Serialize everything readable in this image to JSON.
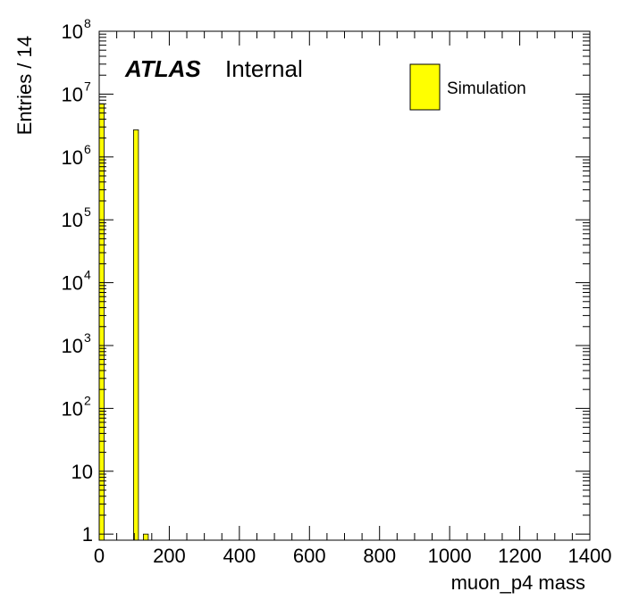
{
  "chart_data": {
    "type": "bar",
    "xlabel": "muon_p4 mass",
    "ylabel": "Entries / 14",
    "xlim": [
      0,
      1400
    ],
    "ylim": [
      0.8,
      100000000
    ],
    "yscale": "log",
    "bin_width": 14,
    "x_ticks": [
      "0",
      "200",
      "400",
      "600",
      "800",
      "1000",
      "1200",
      "1400"
    ],
    "x_tick_values": [
      0,
      200,
      400,
      600,
      800,
      1000,
      1200,
      1400
    ],
    "y_ticks": [
      {
        "value": 1,
        "base": "1",
        "exp": ""
      },
      {
        "value": 10,
        "base": "10",
        "exp": ""
      },
      {
        "value": 100,
        "base": "10",
        "exp": "2"
      },
      {
        "value": 1000,
        "base": "10",
        "exp": "3"
      },
      {
        "value": 10000,
        "base": "10",
        "exp": "4"
      },
      {
        "value": 100000,
        "base": "10",
        "exp": "5"
      },
      {
        "value": 1000000,
        "base": "10",
        "exp": "6"
      },
      {
        "value": 10000000,
        "base": "10",
        "exp": "7"
      },
      {
        "value": 100000000,
        "base": "10",
        "exp": "8"
      }
    ],
    "bins": [
      {
        "x_low": 0,
        "x_high": 14,
        "value": 7000000
      },
      {
        "x_low": 98,
        "x_high": 112,
        "value": 2700000
      },
      {
        "x_low": 126,
        "x_high": 140,
        "value": 1
      }
    ],
    "grid": false,
    "legend_position": "top-right",
    "series": [
      {
        "name": "Simulation",
        "color": "#ffff00"
      }
    ]
  },
  "labels": {
    "experiment": "ATLAS",
    "status": "Internal"
  }
}
